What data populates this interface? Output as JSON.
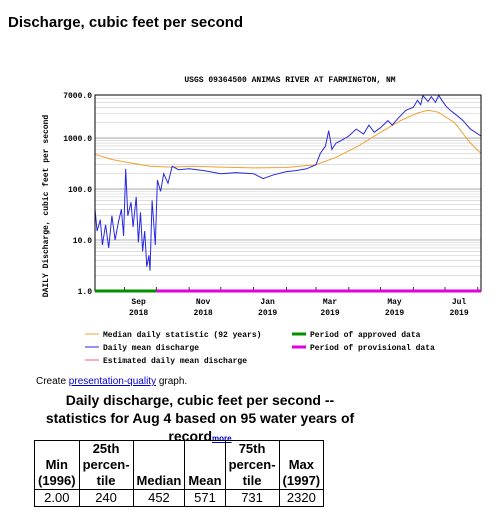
{
  "heading": "Discharge, cubic feet per second",
  "chart_data": {
    "type": "line",
    "title": "USGS 09364500 ANIMAS RIVER AT FARMINGTON, NM",
    "ylabel": "DAILY Discharge, cubic feet per second",
    "yscale": "log",
    "ylim": [
      1,
      7000
    ],
    "yticks": [
      "1.0",
      "10.0",
      "100.0",
      "1000.0",
      "7000.0"
    ],
    "xticks": [
      {
        "top": "Sep",
        "bottom": "2018"
      },
      {
        "top": "Nov",
        "bottom": "2018"
      },
      {
        "top": "Jan",
        "bottom": "2019"
      },
      {
        "top": "Mar",
        "bottom": "2019"
      },
      {
        "top": "May",
        "bottom": "2019"
      },
      {
        "top": "Jul",
        "bottom": "2019"
      }
    ],
    "x_dates": [
      "2018-08-04",
      "2019-08-04"
    ],
    "series": [
      {
        "name": "Median daily statistic (92 years)",
        "color": "#f0a030",
        "points": [
          [
            "2018-08-04",
            480
          ],
          [
            "2018-08-20",
            380
          ],
          [
            "2018-09-05",
            330
          ],
          [
            "2018-09-25",
            280
          ],
          [
            "2018-10-15",
            270
          ],
          [
            "2018-11-05",
            280
          ],
          [
            "2018-12-01",
            270
          ],
          [
            "2019-01-01",
            260
          ],
          [
            "2019-02-01",
            265
          ],
          [
            "2019-03-01",
            300
          ],
          [
            "2019-03-20",
            420
          ],
          [
            "2019-04-10",
            700
          ],
          [
            "2019-05-01",
            1300
          ],
          [
            "2019-05-20",
            2200
          ],
          [
            "2019-06-05",
            3100
          ],
          [
            "2019-06-15",
            3500
          ],
          [
            "2019-06-25",
            3200
          ],
          [
            "2019-07-10",
            2000
          ],
          [
            "2019-07-25",
            800
          ],
          [
            "2019-08-04",
            500
          ]
        ]
      },
      {
        "name": "Daily mean discharge",
        "color": "#2828e0",
        "points": [
          [
            "2018-08-04",
            40
          ],
          [
            "2018-08-06",
            15
          ],
          [
            "2018-08-09",
            25
          ],
          [
            "2018-08-11",
            8
          ],
          [
            "2018-08-14",
            20
          ],
          [
            "2018-08-17",
            7
          ],
          [
            "2018-08-20",
            30
          ],
          [
            "2018-08-23",
            10
          ],
          [
            "2018-08-26",
            22
          ],
          [
            "2018-08-29",
            40
          ],
          [
            "2018-08-31",
            12
          ],
          [
            "2018-09-02",
            250
          ],
          [
            "2018-09-04",
            30
          ],
          [
            "2018-09-07",
            55
          ],
          [
            "2018-09-09",
            18
          ],
          [
            "2018-09-12",
            70
          ],
          [
            "2018-09-14",
            9
          ],
          [
            "2018-09-16",
            35
          ],
          [
            "2018-09-18",
            6
          ],
          [
            "2018-09-20",
            15
          ],
          [
            "2018-09-22",
            3
          ],
          [
            "2018-09-24",
            5
          ],
          [
            "2018-09-25",
            2.5
          ],
          [
            "2018-09-27",
            60
          ],
          [
            "2018-09-30",
            8
          ],
          [
            "2018-10-02",
            150
          ],
          [
            "2018-10-05",
            90
          ],
          [
            "2018-10-08",
            200
          ],
          [
            "2018-10-12",
            130
          ],
          [
            "2018-10-16",
            280
          ],
          [
            "2018-10-22",
            240
          ],
          [
            "2018-11-01",
            250
          ],
          [
            "2018-11-15",
            230
          ],
          [
            "2018-12-01",
            200
          ],
          [
            "2018-12-15",
            210
          ],
          [
            "2019-01-01",
            200
          ],
          [
            "2019-01-10",
            160
          ],
          [
            "2019-01-20",
            190
          ],
          [
            "2019-02-01",
            220
          ],
          [
            "2019-02-10",
            230
          ],
          [
            "2019-02-20",
            250
          ],
          [
            "2019-03-01",
            300
          ],
          [
            "2019-03-05",
            500
          ],
          [
            "2019-03-10",
            700
          ],
          [
            "2019-03-13",
            1400
          ],
          [
            "2019-03-16",
            600
          ],
          [
            "2019-03-20",
            800
          ],
          [
            "2019-03-25",
            900
          ],
          [
            "2019-04-01",
            1100
          ],
          [
            "2019-04-08",
            1500
          ],
          [
            "2019-04-15",
            1200
          ],
          [
            "2019-04-20",
            1800
          ],
          [
            "2019-04-25",
            1300
          ],
          [
            "2019-05-01",
            1600
          ],
          [
            "2019-05-08",
            2200
          ],
          [
            "2019-05-12",
            1800
          ],
          [
            "2019-05-18",
            2500
          ],
          [
            "2019-05-25",
            3500
          ],
          [
            "2019-06-01",
            4000
          ],
          [
            "2019-06-05",
            5500
          ],
          [
            "2019-06-08",
            4500
          ],
          [
            "2019-06-10",
            6800
          ],
          [
            "2019-06-15",
            5200
          ],
          [
            "2019-06-18",
            6500
          ],
          [
            "2019-06-22",
            5000
          ],
          [
            "2019-06-25",
            6900
          ],
          [
            "2019-06-28",
            5500
          ],
          [
            "2019-07-02",
            4200
          ],
          [
            "2019-07-06",
            3500
          ],
          [
            "2019-07-12",
            2800
          ],
          [
            "2019-07-18",
            2200
          ],
          [
            "2019-07-25",
            1500
          ],
          [
            "2019-08-04",
            1100
          ]
        ]
      },
      {
        "name": "Estimated daily mean discharge",
        "color": "#f06080",
        "points": []
      }
    ],
    "approval_bar": {
      "approved": {
        "name": "Period of approved data",
        "color": "#009000",
        "from": "2018-08-04",
        "to": "2018-10-01"
      },
      "provisional": {
        "name": "Period of provisional data",
        "color": "#e000e0",
        "from": "2018-10-01",
        "to": "2019-08-04"
      }
    }
  },
  "create_line": {
    "prefix": "Create ",
    "link": "presentation-quality",
    "suffix": " graph."
  },
  "stats": {
    "title": "Daily discharge, cubic feet per second -- statistics for Aug 4 based on 95 water years of record",
    "more_link": "more",
    "headers": [
      "Min\n(1996)",
      "25th\npercen-\ntile",
      "Median",
      "Mean",
      "75th\npercen-\ntile",
      "Max\n(1997)"
    ],
    "values": [
      "2.00",
      "240",
      "452",
      "571",
      "731",
      "2320"
    ]
  }
}
